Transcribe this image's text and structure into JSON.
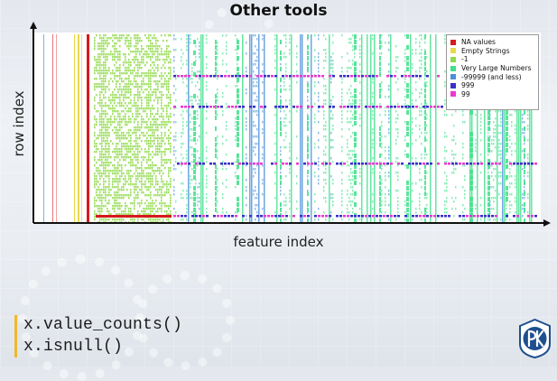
{
  "title": "Other tools",
  "axes": {
    "ylabel": "row index",
    "xlabel": "feature index"
  },
  "legend": {
    "items": [
      {
        "label": "NA values",
        "color": "#d7191c"
      },
      {
        "label": "Empty Strings",
        "color": "#e8d94a"
      },
      {
        "label": "-1",
        "color": "#8fd94a"
      },
      {
        "label": "Very Large Numbers",
        "color": "#3ee08a"
      },
      {
        "label": "-99999 (and less)",
        "color": "#4a90d9"
      },
      {
        "label": "999",
        "color": "#3a2fc8"
      },
      {
        "label": "99",
        "color": "#e83ad0"
      }
    ]
  },
  "code": {
    "line1": "x.value_counts()",
    "line2": "x.isnull()"
  },
  "logo": {
    "icon": "university-logo-icon",
    "color": "#1f4f8f"
  }
}
